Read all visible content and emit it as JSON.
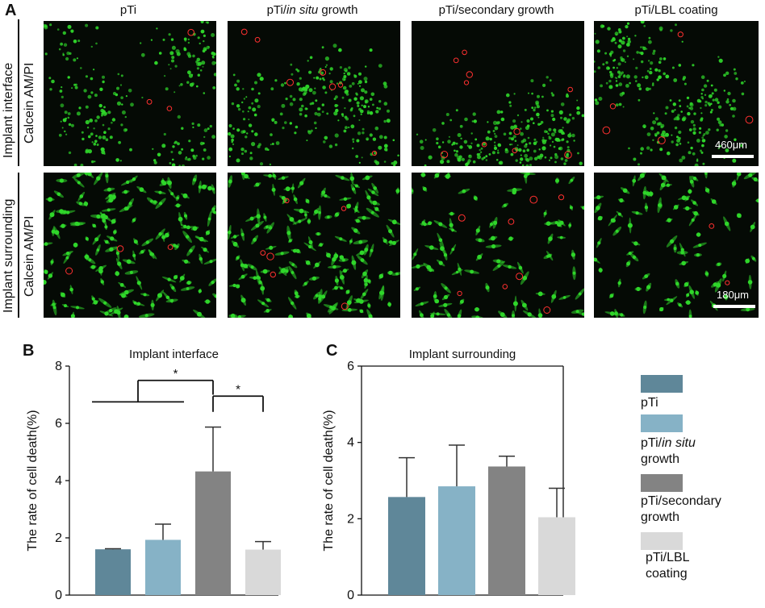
{
  "panel_a": {
    "letter": "A",
    "columns": [
      "pTi",
      "pTi/",
      "in situ",
      " growth",
      "pTi/secondary growth",
      "pTi/LBL coating"
    ],
    "col_titles": {
      "c1": "pTi",
      "c2_pre": "pTi/",
      "c2_it": "in situ",
      "c2_post": " growth",
      "c3": "pTi/secondary growth",
      "c4": "pTi/LBL coating"
    },
    "rows": {
      "r1_group": "Implant interface",
      "r1_stain": "Calcein AM/PI",
      "r2_group": "Implant surrounding",
      "r2_stain": "Calcein AM/PI"
    },
    "scale_bars": {
      "r1": "460μm",
      "r2": "180μm"
    },
    "colors": {
      "live": "#2fd62a",
      "dead": "#ff3030",
      "background": "#050a05"
    }
  },
  "panel_b": {
    "letter": "B",
    "significance": [
      "*",
      "*"
    ]
  },
  "panel_c": {
    "letter": "C"
  },
  "legend": {
    "items": [
      {
        "label_lines": [
          "pTi"
        ],
        "color": "#5f8799"
      },
      {
        "label_lines": [
          "pTi/",
          "in situ",
          "growth"
        ],
        "color": "#86b2c6"
      },
      {
        "label_lines": [
          "pTi/secondary",
          "growth"
        ],
        "color": "#838383"
      },
      {
        "label_lines": [
          "pTi/LBL",
          "coating"
        ],
        "color": "#d9d9d9"
      }
    ]
  },
  "chart_data": [
    {
      "type": "bar",
      "title": "Implant interface",
      "ylabel": "The rate of cell death(%)",
      "xlabel": "",
      "ylim": [
        0,
        8
      ],
      "yticks": [
        0,
        2,
        4,
        6,
        8
      ],
      "categories": [
        "pTi",
        "pTi/in situ growth",
        "pTi/secondary growth",
        "pTi/LBL coating"
      ],
      "values": [
        1.6,
        1.93,
        4.32,
        1.59
      ],
      "errors": [
        0.02,
        0.55,
        1.55,
        0.28
      ],
      "colors": [
        "#5f8799",
        "#86b2c6",
        "#838383",
        "#d9d9d9"
      ]
    },
    {
      "type": "bar",
      "title": "Implant surrounding",
      "ylabel": "The rate of cell death(%)",
      "xlabel": "",
      "ylim": [
        0,
        6
      ],
      "yticks": [
        0,
        2,
        4,
        6
      ],
      "categories": [
        "pTi",
        "pTi/in situ growth",
        "pTi/secondary growth",
        "pTi/LBL coating"
      ],
      "values": [
        2.57,
        2.85,
        3.37,
        2.04
      ],
      "errors": [
        1.03,
        1.08,
        0.27,
        0.76
      ],
      "colors": [
        "#5f8799",
        "#86b2c6",
        "#838383",
        "#d9d9d9"
      ]
    }
  ]
}
